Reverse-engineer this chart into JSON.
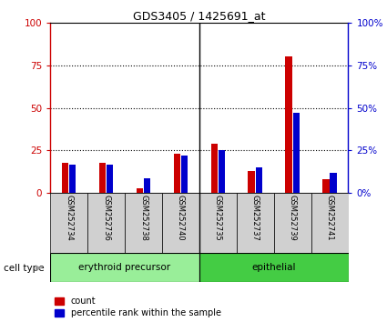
{
  "title": "GDS3405 / 1425691_at",
  "samples": [
    "GSM252734",
    "GSM252736",
    "GSM252738",
    "GSM252740",
    "GSM252735",
    "GSM252737",
    "GSM252739",
    "GSM252741"
  ],
  "count_values": [
    18,
    18,
    3,
    23,
    29,
    13,
    80,
    8
  ],
  "percentile_values": [
    17,
    17,
    9,
    22,
    25,
    15,
    47,
    12
  ],
  "groups": [
    {
      "label": "erythroid precursor",
      "indices": [
        0,
        1,
        2,
        3
      ],
      "color": "#99ee99"
    },
    {
      "label": "epithelial",
      "indices": [
        4,
        5,
        6,
        7
      ],
      "color": "#44cc44"
    }
  ],
  "bar_width": 0.18,
  "count_color": "#cc0000",
  "percentile_color": "#0000cc",
  "ylim": [
    0,
    100
  ],
  "yticks": [
    0,
    25,
    50,
    75,
    100
  ],
  "ytick_labels_left": [
    "0",
    "25",
    "50",
    "75",
    "100"
  ],
  "ytick_labels_right": [
    "0%",
    "25%",
    "50%",
    "75%",
    "100%"
  ],
  "cell_type_label": "cell type",
  "legend_count": "count",
  "legend_percentile": "percentile rank within the sample",
  "separator_index": 4
}
